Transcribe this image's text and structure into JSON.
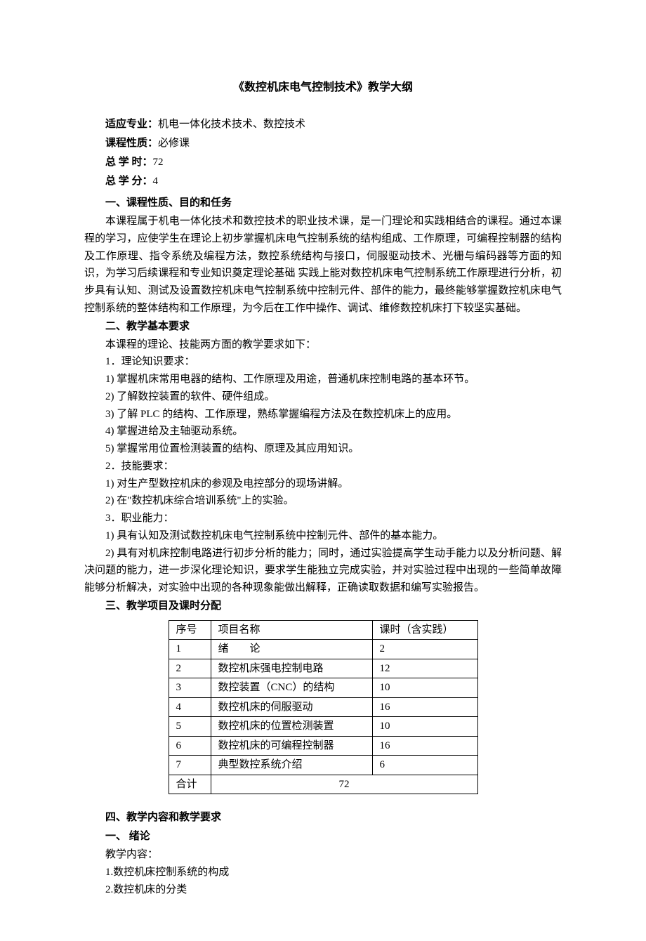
{
  "title": "《数控机床电气控制技术》教学大纲",
  "meta": {
    "major_label": "适应专业：",
    "major_value": "机电一体化技术技术、数控技术",
    "nature_label": "课程性质：",
    "nature_value": "必修课",
    "hours_label": "总 学 时：",
    "hours_value": "72",
    "credit_label": "总 学 分：",
    "credit_value": "4"
  },
  "sec1": {
    "heading": "一、课程性质、目的和任务",
    "p1": "本课程属于机电一体化技术和数控技术的职业技术课，是一门理论和实践相结合的课程。通过本课程的学习，应使学生在理论上初步掌握机床电气控制系统的结构组成、工作原理，可编程控制器的结构及工作原理、指令系统及编程方法，数控系统结构与接口，伺服驱动技术、光栅与编码器等方面的知识，为学习后续课程和专业知识奠定理论基础 实践上能对数控机床电气控制系统工作原理进行分析，初步具有认知、测试及设置数控机床电气控制系统中控制元件、部件的能力，最终能够掌握数控机床电气控制系统的整体结构和工作原理，为今后在工作中操作、调试、维修数控机床打下较坚实基础。"
  },
  "sec2": {
    "heading": "二、教学基本要求",
    "intro": "本课程的理论、技能两方面的教学要求如下：",
    "g1_head": "1．理论知识要求：",
    "g1_items": [
      "1) 掌握机床常用电器的结构、工作原理及用途，普通机床控制电路的基本环节。",
      "2) 了解数控装置的软件、硬件组成。",
      "3) 了解 PLC 的结构、工作原理，熟练掌握编程方法及在数控机床上的应用。",
      "4) 掌握进给及主轴驱动系统。",
      "5) 掌握常用位置检测装置的结构、原理及其应用知识。"
    ],
    "g2_head": "2．技能要求：",
    "g2_items": [
      "1) 对生产型数控机床的参观及电控部分的现场讲解。",
      "2) 在\"数控机床综合培训系统\"上的实验。"
    ],
    "g3_head": "3．职业能力：",
    "g3_items": [
      "1) 具有认知及测试数控机床电气控制系统中控制元件、部件的基本能力。",
      "2) 具有对机床控制电路进行初步分析的能力；同时，通过实验提高学生动手能力以及分析问题、解决问题的能力，进一步深化理论知识，要求学生能独立完成实验，并对实验过程中出现的一些简单故障能够分析解决，对实验中出现的各种现象能做出解释，正确读取数据和编写实验报告。"
    ]
  },
  "sec3": {
    "heading": "三、教学项目及课时分配",
    "table": {
      "columns": [
        "序号",
        "项目名称",
        "课时（含实践）"
      ],
      "rows": [
        [
          "1",
          "绪　　论",
          "2"
        ],
        [
          "2",
          "数控机床强电控制电路",
          "12"
        ],
        [
          "3",
          "数控装置（CNC）的结构",
          "10"
        ],
        [
          "4",
          "数控机床的伺服驱动",
          "16"
        ],
        [
          "5",
          "数控机床的位置检测装置",
          "10"
        ],
        [
          "6",
          "数控机床的可编程控制器",
          "16"
        ],
        [
          "7",
          "典型数控系统介绍",
          "6"
        ]
      ],
      "total_label": "合计",
      "total_value": "72"
    }
  },
  "sec4": {
    "heading": "四、教学内容和教学要求",
    "sub_heading": "一、 绪论",
    "content_label": "教学内容：",
    "items": [
      "1.数控机床控制系统的构成",
      "2.数控机床的分类"
    ]
  },
  "style": {
    "text_color": "#000000",
    "bg_color": "#ffffff",
    "title_fontsize": 16,
    "body_fontsize": 15,
    "line_height": 1.65,
    "table_border_color": "#000000"
  }
}
